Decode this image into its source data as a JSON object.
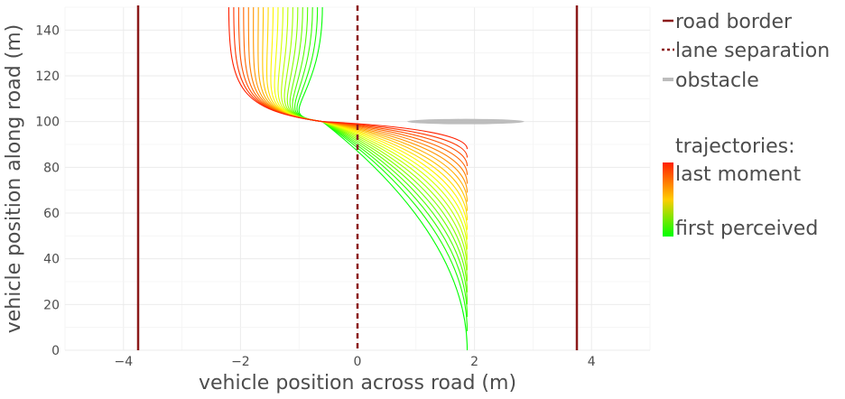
{
  "chart_data": {
    "type": "line",
    "xlabel": "vehicle position across road (m)",
    "ylabel": "vehicle position along road (m)",
    "xlim": [
      -5,
      5
    ],
    "ylim": [
      0,
      150
    ],
    "x_ticks": [
      -4,
      -2,
      0,
      2,
      4
    ],
    "x_tick_labels": [
      "−4",
      "−2",
      "0",
      "2",
      "4"
    ],
    "y_ticks": [
      0,
      20,
      40,
      60,
      80,
      100,
      120,
      140
    ],
    "y_tick_labels": [
      "0",
      "20",
      "40",
      "60",
      "80",
      "100",
      "120",
      "140"
    ],
    "grid": true,
    "legend_position": "right",
    "colors": {
      "road_border": "#8b1a1a",
      "lane_separation": "#8b1a1a",
      "obstacle": "#bdbdbd",
      "trajectory_first": "#00ff00",
      "trajectory_mid": "#ffff00",
      "trajectory_last": "#ff2000"
    },
    "road_borders": [
      {
        "x": -3.75
      },
      {
        "x": 3.75
      }
    ],
    "lane_separation": {
      "x": 0
    },
    "obstacle": {
      "x": [
        0.85,
        2.85
      ],
      "y": 100
    },
    "trajectories": {
      "count": 20,
      "start_x": 1.875,
      "merge_point": [
        -0.6,
        100
      ],
      "first_perceived": {
        "start_y": 0,
        "end_x": -0.6
      },
      "last_moment": {
        "start_y": 88,
        "end_x": -2.2
      }
    },
    "legend": {
      "items": [
        {
          "label": "road border",
          "color": "#8b1a1a",
          "style": "solid"
        },
        {
          "label": "lane separation",
          "color": "#8b1a1a",
          "style": "dashed"
        },
        {
          "label": "obstacle",
          "color": "#bdbdbd",
          "style": "solid"
        }
      ],
      "colorbar_title": "trajectories:",
      "colorbar_top_label": "last moment",
      "colorbar_bottom_label": "first perceived"
    }
  }
}
